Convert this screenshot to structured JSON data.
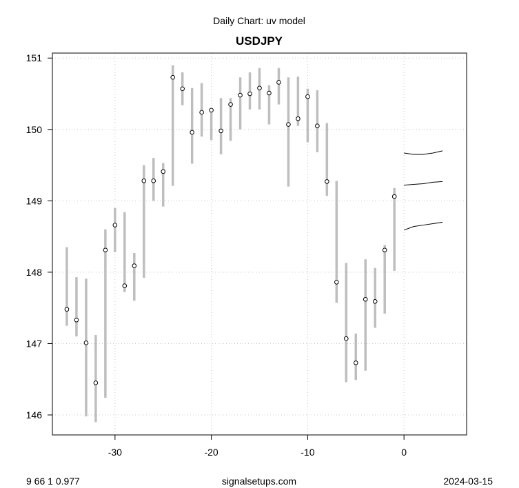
{
  "chart_data": {
    "type": "range-line",
    "subtitle": "Daily Chart: uv model",
    "title": "USDJPY",
    "footer_left": "9 66 1 0.977",
    "footer_center": "signalsetups.com",
    "footer_right": "2024-03-15",
    "xlim": [
      -36.5,
      6.5
    ],
    "ylim": [
      145.72,
      151.07
    ],
    "xticks": [
      -30,
      -20,
      -10,
      0
    ],
    "yticks": [
      146,
      147,
      148,
      149,
      150,
      151
    ],
    "grid": true,
    "colors": {
      "range": "#bebebe",
      "forecast": "#000000",
      "grid": "#c8c8c8",
      "close_fill": "#ffffff"
    },
    "bars": [
      {
        "x": -35,
        "low": 147.25,
        "high": 148.35,
        "close": 147.48
      },
      {
        "x": -34,
        "low": 147.1,
        "high": 147.93,
        "close": 147.33
      },
      {
        "x": -33,
        "low": 145.98,
        "high": 147.91,
        "close": 147.01
      },
      {
        "x": -32,
        "low": 145.9,
        "high": 147.12,
        "close": 146.45
      },
      {
        "x": -31,
        "low": 146.24,
        "high": 148.6,
        "close": 148.31
      },
      {
        "x": -30,
        "low": 148.28,
        "high": 148.9,
        "close": 148.66
      },
      {
        "x": -29,
        "low": 147.72,
        "high": 148.84,
        "close": 147.81
      },
      {
        "x": -28,
        "low": 147.6,
        "high": 148.27,
        "close": 148.09
      },
      {
        "x": -27,
        "low": 147.92,
        "high": 149.5,
        "close": 149.28
      },
      {
        "x": -26,
        "low": 149.0,
        "high": 149.6,
        "close": 149.28
      },
      {
        "x": -25,
        "low": 148.92,
        "high": 149.53,
        "close": 149.41
      },
      {
        "x": -24,
        "low": 149.21,
        "high": 150.9,
        "close": 150.73
      },
      {
        "x": -23,
        "low": 150.34,
        "high": 150.8,
        "close": 150.57
      },
      {
        "x": -22,
        "low": 149.52,
        "high": 150.58,
        "close": 149.96
      },
      {
        "x": -21,
        "low": 149.9,
        "high": 150.65,
        "close": 150.24
      },
      {
        "x": -20,
        "low": 149.85,
        "high": 150.28,
        "close": 150.27
      },
      {
        "x": -19,
        "low": 149.65,
        "high": 150.44,
        "close": 149.98
      },
      {
        "x": -18,
        "low": 149.84,
        "high": 150.44,
        "close": 150.35
      },
      {
        "x": -17,
        "low": 150.0,
        "high": 150.73,
        "close": 150.48
      },
      {
        "x": -16,
        "low": 150.28,
        "high": 150.8,
        "close": 150.5
      },
      {
        "x": -15,
        "low": 150.28,
        "high": 150.86,
        "close": 150.58
      },
      {
        "x": -14,
        "low": 150.07,
        "high": 150.62,
        "close": 150.51
      },
      {
        "x": -13,
        "low": 150.35,
        "high": 150.86,
        "close": 150.66
      },
      {
        "x": -12,
        "low": 149.2,
        "high": 150.73,
        "close": 150.07
      },
      {
        "x": -11,
        "low": 150.05,
        "high": 150.74,
        "close": 150.15
      },
      {
        "x": -10,
        "low": 149.82,
        "high": 150.57,
        "close": 150.46
      },
      {
        "x": -9,
        "low": 149.68,
        "high": 150.55,
        "close": 150.05
      },
      {
        "x": -8,
        "low": 149.07,
        "high": 150.09,
        "close": 149.27
      },
      {
        "x": -7,
        "low": 147.57,
        "high": 149.28,
        "close": 147.86
      },
      {
        "x": -6,
        "low": 146.46,
        "high": 148.13,
        "close": 147.07
      },
      {
        "x": -5,
        "low": 146.49,
        "high": 147.14,
        "close": 146.73
      },
      {
        "x": -4,
        "low": 146.62,
        "high": 148.18,
        "close": 147.62
      },
      {
        "x": -3,
        "low": 147.22,
        "high": 148.06,
        "close": 147.59
      },
      {
        "x": -2,
        "low": 147.42,
        "high": 148.38,
        "close": 148.31
      },
      {
        "x": -1,
        "low": 148.02,
        "high": 149.18,
        "close": 149.06
      }
    ],
    "forecast": [
      {
        "x": [
          0,
          1,
          2,
          3,
          4
        ],
        "y": [
          149.67,
          149.65,
          149.65,
          149.67,
          149.7
        ]
      },
      {
        "x": [
          0,
          1,
          2,
          3,
          4
        ],
        "y": [
          149.22,
          149.23,
          149.24,
          149.26,
          149.27
        ]
      },
      {
        "x": [
          0,
          1,
          2,
          3,
          4
        ],
        "y": [
          148.59,
          148.64,
          148.66,
          148.68,
          148.7
        ]
      }
    ]
  }
}
